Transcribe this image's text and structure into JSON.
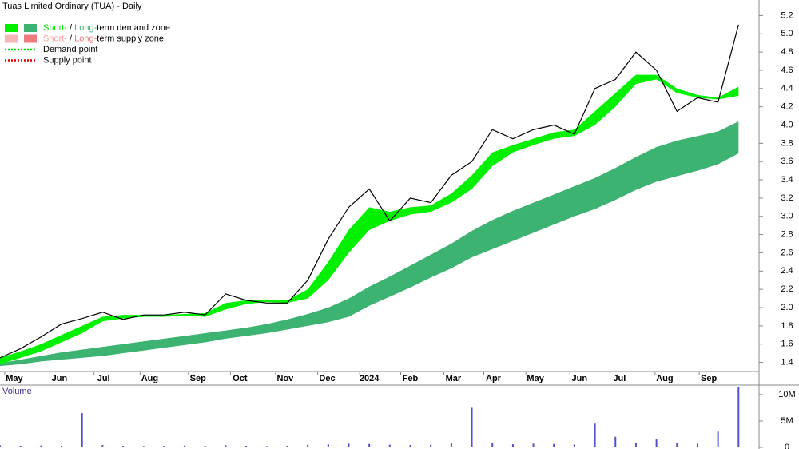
{
  "chart_data": [
    {
      "type": "band-line",
      "title": "Tuas Limited Ordinary (TUA) - Daily",
      "legend": [
        {
          "swatches": [
            "#00f000",
            "#3cb371"
          ],
          "parts": [
            {
              "text": "Short-",
              "color": "#00e000"
            },
            {
              "text": " / "
            },
            {
              "text": "Long-",
              "color": "#3cb371"
            },
            {
              "text": "term demand zone"
            }
          ]
        },
        {
          "swatches": [
            "#f6b6b6",
            "#ee7b7b"
          ],
          "parts": [
            {
              "text": "Short-",
              "color": "#f6a0a0"
            },
            {
              "text": " / "
            },
            {
              "text": "Long-",
              "color": "#ee7b7b"
            },
            {
              "text": "term supply zone"
            }
          ]
        },
        {
          "dotted": "#00e000",
          "parts": [
            {
              "text": "Demand point"
            }
          ]
        },
        {
          "dotted": "#e00000",
          "parts": [
            {
              "text": "Supply point"
            }
          ]
        }
      ],
      "x": [
        0,
        2,
        4,
        6,
        8,
        10,
        12,
        14,
        16,
        18,
        20,
        22,
        24,
        26,
        28,
        30,
        32,
        34,
        36,
        38,
        40,
        42,
        44,
        46,
        48,
        50,
        52,
        54,
        56,
        58,
        60,
        62,
        64,
        66,
        68,
        70,
        72
      ],
      "xlim": [
        0,
        74
      ],
      "xticks": [
        {
          "value": 1.4,
          "label": "May"
        },
        {
          "value": 5.8,
          "label": "Jun"
        },
        {
          "value": 10.1,
          "label": "Jul"
        },
        {
          "value": 14.6,
          "label": "Aug"
        },
        {
          "value": 19.3,
          "label": "Sep"
        },
        {
          "value": 23.4,
          "label": "Oct"
        },
        {
          "value": 27.8,
          "label": "Nov"
        },
        {
          "value": 31.9,
          "label": "Dec"
        },
        {
          "value": 36,
          "label": "2024"
        },
        {
          "value": 40,
          "label": "Feb"
        },
        {
          "value": 44.2,
          "label": "Mar"
        },
        {
          "value": 48.1,
          "label": "Apr"
        },
        {
          "value": 52.2,
          "label": "May"
        },
        {
          "value": 56.5,
          "label": "Jun"
        },
        {
          "value": 60.4,
          "label": "Jul"
        },
        {
          "value": 64.8,
          "label": "Aug"
        },
        {
          "value": 69.1,
          "label": "Sep"
        }
      ],
      "ylim": [
        1.3,
        5.37
      ],
      "yticks": [
        1.4,
        1.6,
        1.8,
        {
          "value": 2,
          "label": "2.0"
        },
        2.2,
        2.4,
        2.6,
        2.8,
        {
          "value": 3,
          "label": "3.0"
        },
        3.2,
        3.4,
        3.6,
        3.8,
        {
          "value": 4,
          "label": "4.0"
        },
        4.2,
        4.4,
        4.6,
        4.8,
        {
          "value": 5,
          "label": "5.0"
        },
        5.2
      ],
      "bands": [
        {
          "color": "#3cb371",
          "upper": [
            1.39,
            1.43,
            1.47,
            1.51,
            1.54,
            1.57,
            1.6,
            1.63,
            1.66,
            1.69,
            1.72,
            1.75,
            1.78,
            1.82,
            1.87,
            1.93,
            2.0,
            2.1,
            2.23,
            2.34,
            2.46,
            2.58,
            2.7,
            2.84,
            2.96,
            3.06,
            3.15,
            3.24,
            3.33,
            3.42,
            3.53,
            3.65,
            3.76,
            3.83,
            3.88,
            3.93,
            4.04
          ],
          "lower": [
            1.36,
            1.38,
            1.41,
            1.43,
            1.45,
            1.47,
            1.5,
            1.53,
            1.56,
            1.59,
            1.62,
            1.66,
            1.69,
            1.72,
            1.76,
            1.8,
            1.84,
            1.9,
            2.02,
            2.12,
            2.22,
            2.33,
            2.43,
            2.55,
            2.64,
            2.73,
            2.82,
            2.91,
            3.0,
            3.08,
            3.18,
            3.29,
            3.38,
            3.44,
            3.5,
            3.57,
            3.69
          ]
        },
        {
          "color": "#00f000",
          "upper": [
            1.45,
            1.52,
            1.6,
            1.7,
            1.8,
            1.9,
            1.92,
            1.92,
            1.92,
            1.93,
            1.94,
            2.05,
            2.08,
            2.08,
            2.08,
            2.2,
            2.5,
            2.85,
            3.1,
            3.05,
            3.1,
            3.12,
            3.25,
            3.45,
            3.7,
            3.78,
            3.85,
            3.92,
            3.95,
            4.15,
            4.35,
            4.55,
            4.55,
            4.4,
            4.33,
            4.3,
            4.42
          ],
          "lower": [
            1.38,
            1.45,
            1.52,
            1.62,
            1.72,
            1.85,
            1.88,
            1.9,
            1.9,
            1.91,
            1.9,
            1.98,
            2.04,
            2.06,
            2.05,
            2.1,
            2.3,
            2.6,
            2.85,
            2.95,
            3.02,
            3.05,
            3.15,
            3.3,
            3.55,
            3.7,
            3.78,
            3.85,
            3.88,
            4.0,
            4.2,
            4.45,
            4.5,
            4.35,
            4.3,
            4.28,
            4.32
          ]
        }
      ],
      "series": [
        {
          "color": "#000000",
          "values": [
            1.45,
            1.55,
            1.68,
            1.82,
            1.88,
            1.95,
            1.87,
            1.92,
            1.92,
            1.95,
            1.92,
            2.15,
            2.08,
            2.05,
            2.05,
            2.3,
            2.75,
            3.1,
            3.3,
            2.95,
            3.2,
            3.15,
            3.45,
            3.6,
            3.95,
            3.85,
            3.95,
            4.0,
            3.9,
            4.4,
            4.5,
            4.8,
            4.6,
            4.15,
            4.3,
            4.25,
            5.1
          ]
        }
      ]
    },
    {
      "type": "bar",
      "title": "Volume",
      "x": [
        0,
        2,
        4,
        6,
        8,
        10,
        12,
        14,
        16,
        18,
        20,
        22,
        24,
        26,
        28,
        30,
        32,
        34,
        36,
        38,
        40,
        42,
        44,
        46,
        48,
        50,
        52,
        54,
        56,
        58,
        60,
        62,
        64,
        66,
        68,
        70,
        72
      ],
      "xlim": [
        0,
        74
      ],
      "values": [
        400000,
        300000,
        350000,
        300000,
        6500000,
        450000,
        300000,
        250000,
        300000,
        350000,
        280000,
        400000,
        300000,
        250000,
        300000,
        500000,
        600000,
        700000,
        650000,
        500000,
        450000,
        500000,
        900000,
        7500000,
        800000,
        600000,
        700000,
        650000,
        550000,
        4500000,
        2000000,
        900000,
        1500000,
        800000,
        700000,
        3000000,
        11500000
      ],
      "color": "#5050d0",
      "ylim": [
        0,
        11800000
      ],
      "yticks": [
        0,
        {
          "value": 5000000,
          "label": "5M"
        },
        {
          "value": 10000000,
          "label": "10M"
        }
      ]
    }
  ]
}
